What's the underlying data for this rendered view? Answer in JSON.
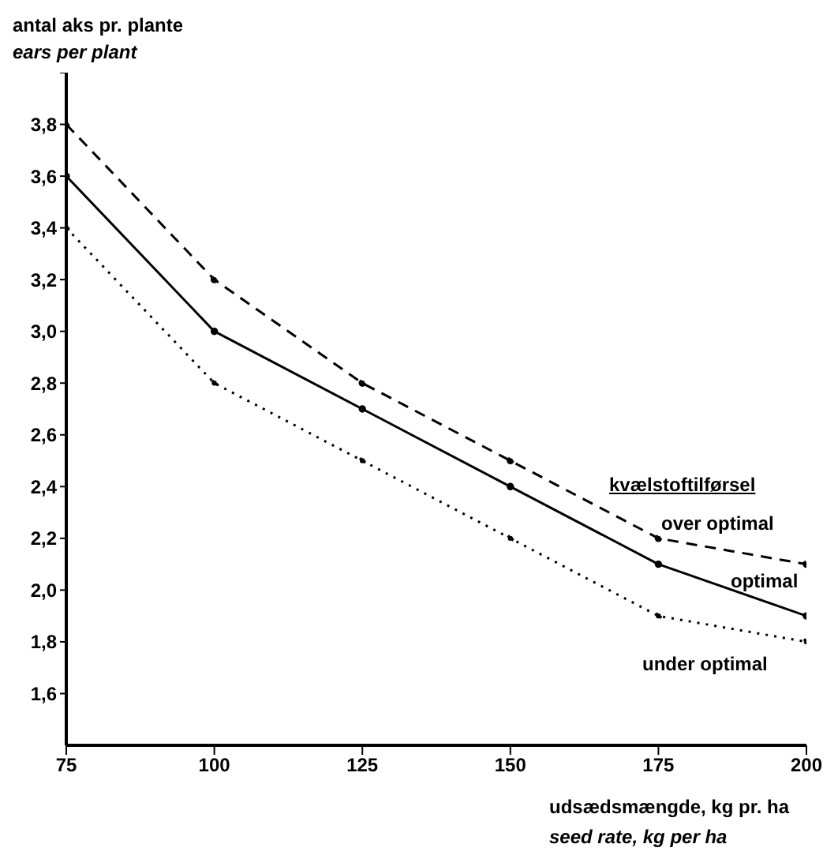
{
  "chart_data": {
    "type": "line",
    "ylabel": "antal aks pr. plante\nears per plant",
    "xlabel": "udsædsmængde, kg pr. ha\nseed rate, kg per ha",
    "legend_title": "kvælstoftilførsel",
    "x": [
      75,
      100,
      125,
      150,
      175,
      200
    ],
    "series": [
      {
        "name": "over optimal",
        "color": "#000000",
        "line_style": "dashed",
        "values": [
          3.8,
          3.2,
          2.8,
          2.5,
          2.2,
          2.1
        ]
      },
      {
        "name": "optimal",
        "color": "#000000",
        "line_style": "solid",
        "values": [
          3.6,
          3.0,
          2.7,
          2.4,
          2.1,
          1.9
        ]
      },
      {
        "name": "under optimal",
        "color": "#000000",
        "line_style": "dotted",
        "values": [
          3.4,
          2.8,
          2.5,
          2.2,
          1.9,
          1.8
        ]
      }
    ],
    "xlim": [
      75,
      200
    ],
    "xticks": [
      75,
      100,
      125,
      150,
      175,
      200
    ],
    "ylim": [
      1.4,
      4.0
    ],
    "yticks": [
      {
        "value": 1.6,
        "label": "1,6"
      },
      {
        "value": 1.8,
        "label": "1,8"
      },
      {
        "value": 2.0,
        "label": "2,0"
      },
      {
        "value": 2.2,
        "label": "2,2"
      },
      {
        "value": 2.4,
        "label": "2,4"
      },
      {
        "value": 2.6,
        "label": "2,6"
      },
      {
        "value": 2.8,
        "label": "2,8"
      },
      {
        "value": 3.0,
        "label": "3,0"
      },
      {
        "value": 3.2,
        "label": "3,2"
      },
      {
        "value": 3.4,
        "label": "3,4"
      },
      {
        "value": 3.6,
        "label": "3,6"
      },
      {
        "value": 3.8,
        "label": "3,8"
      },
      {
        "value": 4.0,
        "label": null
      }
    ],
    "grid": false,
    "marker": "circle"
  }
}
